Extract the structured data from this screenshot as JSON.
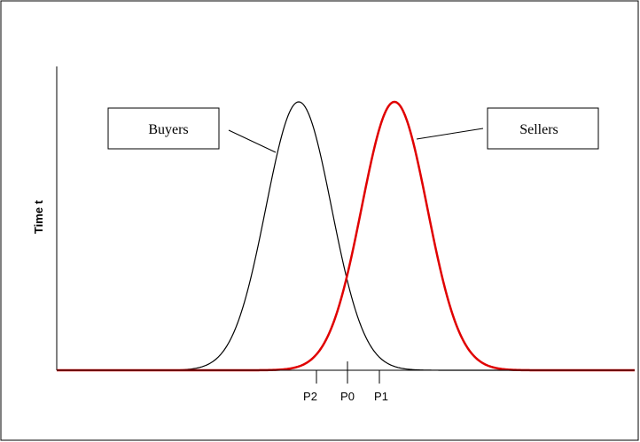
{
  "axis": {
    "y_label": "Time t"
  },
  "labels": {
    "buyers": "Buyers",
    "sellers": "Sellers"
  },
  "ticks": [
    "P2",
    "P0",
    "P1"
  ]
}
